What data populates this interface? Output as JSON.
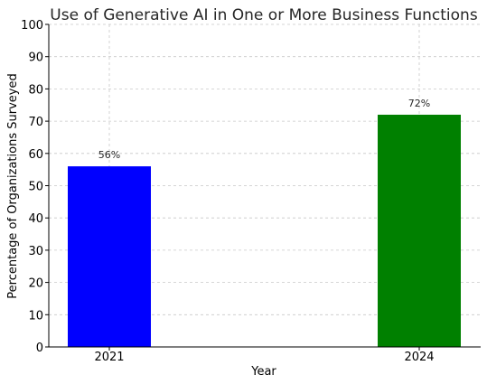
{
  "chart_data": {
    "type": "bar",
    "title": "Use of Generative AI in One or More Business Functions",
    "xlabel": "Year",
    "ylabel": "Percentage of Organizations Surveyed",
    "categories": [
      "2021",
      "2024"
    ],
    "values": [
      56,
      72
    ],
    "data_labels": [
      "56%",
      "72%"
    ],
    "colors": [
      "#0000ff",
      "#008000"
    ],
    "ylim": [
      0,
      100
    ],
    "yticks": [
      0,
      10,
      20,
      30,
      40,
      50,
      60,
      70,
      80,
      90,
      100
    ],
    "grid": true,
    "legend": "none"
  }
}
